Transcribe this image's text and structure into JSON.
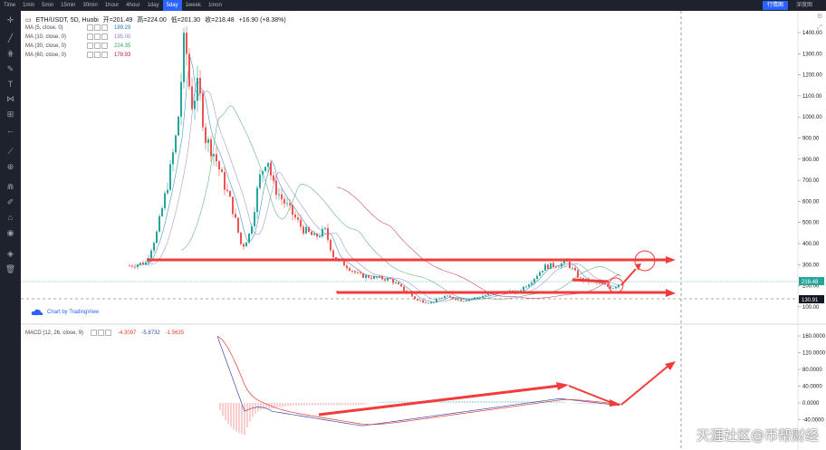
{
  "toolbar": {
    "timeframes": [
      "Time",
      "1min",
      "5min",
      "15min",
      "30min",
      "1hour",
      "4hour",
      "1day",
      "5day",
      "1week",
      "1mon"
    ],
    "active_timeframe": "5day",
    "primary_button": "行情图",
    "secondary_button": "深度图"
  },
  "symbol_legend": {
    "symbol": "ETH/USDT, 5D, Huobi",
    "open_label": "开=201.49",
    "high_label": "高=224.00",
    "low_label": "低=201.30",
    "close_label": "收=218.48",
    "change": "+16.90 (+8.38%)"
  },
  "ma_legend": [
    {
      "label": "MA (5, close, 0)",
      "value": "189.29",
      "color": "#1f77b4"
    },
    {
      "label": "MA (10, close, 0)",
      "value": "195.00",
      "color": "#8e7cc3"
    },
    {
      "label": "MA (30, close, 0)",
      "value": "224.35",
      "color": "#38a15a"
    },
    {
      "label": "MA (60, close, 0)",
      "value": "178.93",
      "color": "#c2185b"
    }
  ],
  "macd_legend": {
    "label": "MACD (12, 26, close, 9)",
    "values": [
      "-4.3097",
      "-5.8732",
      "-1.5635"
    ],
    "colors": [
      "#e53935",
      "#3949ab",
      "#e53935"
    ]
  },
  "watermark": "Chart by TradingView",
  "price_axis": [
    "1400.00",
    "1300.00",
    "1200.00",
    "1100.00",
    "1000.00",
    "900.00",
    "800.00",
    "700.00",
    "600.00",
    "500.00",
    "400.00",
    "300.00",
    "200.00",
    "100.00"
  ],
  "price_tags": {
    "current": "218.48",
    "cursor": "130.91"
  },
  "macd_axis": [
    "160.0000",
    "120.0000",
    "80.0000",
    "40.0000",
    "0.0000",
    "-40.0000"
  ],
  "footer_watermark": "天涯社区@币帮财经",
  "colors": {
    "up": "#26a69a",
    "down": "#ef5350",
    "annotation": "#f23c3c"
  }
}
